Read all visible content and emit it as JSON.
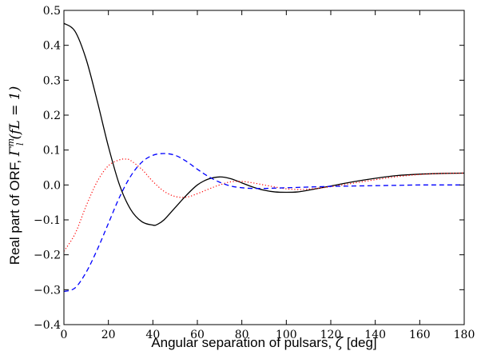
{
  "chart_data": {
    "type": "line",
    "xlabel_text": "Angular separation of pulsars, ",
    "xlabel_math": "ζ",
    "xlabel_unit": " [deg]",
    "ylabel_text": "Real part of ORF, ",
    "ylabel_math": "Γ",
    "ylabel_sup": "m",
    "ylabel_sub": "l",
    "ylabel_args": "(fL = 1)",
    "xlim": [
      0,
      180
    ],
    "ylim": [
      -0.4,
      0.5
    ],
    "xticks": [
      0,
      20,
      40,
      60,
      80,
      100,
      120,
      140,
      160,
      180
    ],
    "yticks": [
      -0.4,
      -0.3,
      -0.2,
      -0.1,
      0.0,
      0.1,
      0.2,
      0.3,
      0.4,
      0.5
    ],
    "ytick_labels": [
      "−0.4",
      "−0.3",
      "−0.2",
      "−0.1",
      "0.0",
      "0.1",
      "0.2",
      "0.3",
      "0.4",
      "0.5"
    ],
    "grid": false,
    "series": [
      {
        "color": "#000000",
        "style": "solid",
        "x": [
          0,
          5,
          10,
          15,
          20,
          25,
          30,
          35,
          40,
          42,
          45,
          50,
          55,
          60,
          65,
          70,
          75,
          80,
          85,
          90,
          95,
          100,
          105,
          110,
          120,
          130,
          140,
          150,
          160,
          170,
          180
        ],
        "y": [
          0.463,
          0.44,
          0.36,
          0.24,
          0.11,
          0.0,
          -0.07,
          -0.105,
          -0.115,
          -0.113,
          -0.1,
          -0.065,
          -0.03,
          0.0,
          0.017,
          0.023,
          0.018,
          0.006,
          -0.006,
          -0.015,
          -0.02,
          -0.021,
          -0.02,
          -0.015,
          -0.003,
          0.009,
          0.019,
          0.027,
          0.031,
          0.033,
          0.034
        ]
      },
      {
        "color": "#ff0000",
        "style": "dotted",
        "x": [
          0,
          5,
          10,
          15,
          20,
          25,
          28,
          30,
          35,
          40,
          45,
          50,
          55,
          60,
          65,
          70,
          75,
          80,
          85,
          90,
          95,
          100,
          105,
          110,
          120,
          130,
          140,
          150,
          160,
          170,
          180
        ],
        "y": [
          -0.19,
          -0.14,
          -0.06,
          0.01,
          0.055,
          0.072,
          0.074,
          0.07,
          0.045,
          0.01,
          -0.018,
          -0.033,
          -0.035,
          -0.025,
          -0.012,
          0.0,
          0.009,
          0.01,
          0.006,
          0.0,
          -0.006,
          -0.011,
          -0.013,
          -0.012,
          -0.005,
          0.005,
          0.015,
          0.024,
          0.03,
          0.033,
          0.034
        ]
      },
      {
        "color": "#0000ff",
        "style": "dashed",
        "x": [
          0,
          5,
          10,
          15,
          20,
          25,
          30,
          35,
          40,
          45,
          50,
          55,
          60,
          65,
          70,
          75,
          80,
          85,
          90,
          95,
          100,
          105,
          110,
          120,
          130,
          140,
          150,
          160,
          170,
          180
        ],
        "y": [
          -0.305,
          -0.295,
          -0.25,
          -0.185,
          -0.11,
          -0.035,
          0.025,
          0.065,
          0.085,
          0.09,
          0.085,
          0.068,
          0.045,
          0.024,
          0.008,
          -0.003,
          -0.008,
          -0.01,
          -0.01,
          -0.009,
          -0.008,
          -0.007,
          -0.006,
          -0.004,
          -0.003,
          -0.002,
          -0.001,
          0.0,
          0.0,
          0.0
        ]
      }
    ]
  }
}
